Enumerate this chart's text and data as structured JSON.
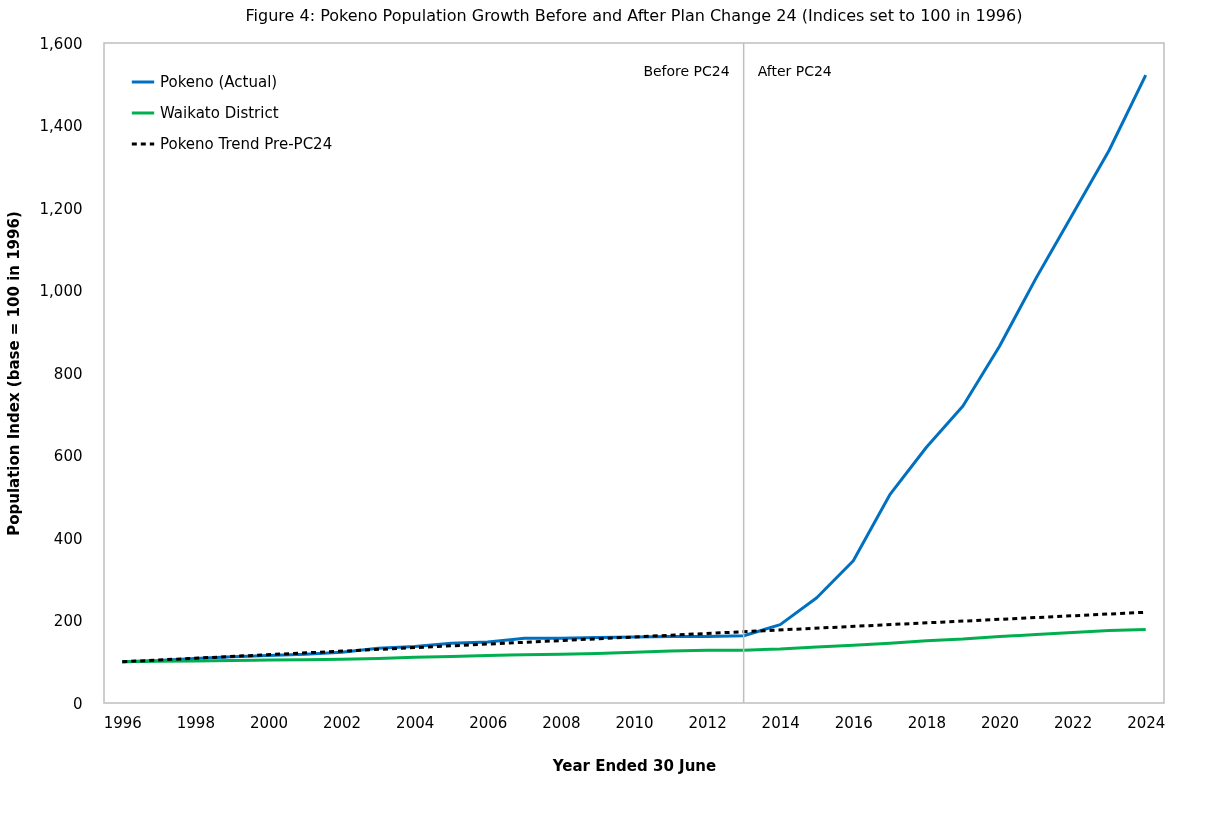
{
  "chart_data": {
    "type": "line",
    "title": "Figure 4: Pokeno Population Growth Before and After Plan Change 24 (Indices set to 100 in 1996)",
    "xlabel": "Year Ended 30 June",
    "ylabel": "Population Index (base = 100 in 1996)",
    "x": [
      1996,
      1997,
      1998,
      1999,
      2000,
      2001,
      2002,
      2003,
      2004,
      2005,
      2006,
      2007,
      2008,
      2009,
      2010,
      2011,
      2012,
      2013,
      2014,
      2015,
      2016,
      2017,
      2018,
      2019,
      2020,
      2021,
      2022,
      2023,
      2024
    ],
    "series": [
      {
        "name": "Pokeno (Actual)",
        "color": "#0070c0",
        "values": [
          100,
          103,
          108,
          112,
          115,
          118,
          123,
          133,
          137,
          145,
          148,
          157,
          157,
          159,
          160,
          161,
          161,
          163,
          190,
          255,
          345,
          505,
          620,
          720,
          865,
          1030,
          1185,
          1340,
          1522
        ]
      },
      {
        "name": "Waikato District",
        "color": "#00b050",
        "values": [
          100,
          101,
          102,
          103,
          104,
          105,
          106,
          108,
          111,
          113,
          115,
          117,
          118,
          120,
          123,
          126,
          128,
          128,
          131,
          136,
          140,
          145,
          151,
          155,
          161,
          166,
          171,
          176,
          178
        ]
      },
      {
        "name": "Pokeno Trend Pre-PC24",
        "color": "#000000",
        "line_style": "dashed",
        "x": [
          1996,
          2024
        ],
        "values": [
          100,
          220
        ]
      }
    ],
    "xlim": [
      1995.5,
      2024.5
    ],
    "xticks": [
      1996,
      1998,
      2000,
      2002,
      2004,
      2006,
      2008,
      2010,
      2012,
      2014,
      2016,
      2018,
      2020,
      2022,
      2024
    ],
    "ylim": [
      0,
      1600
    ],
    "yticks": [
      0,
      200,
      400,
      600,
      800,
      {
        "value": 1000,
        "label": "1,000"
      },
      {
        "value": 1200,
        "label": "1,200"
      },
      {
        "value": 1400,
        "label": "1,400"
      },
      {
        "value": 1600,
        "label": "1,600"
      }
    ],
    "ref_lines": [
      {
        "axis": "x",
        "value": 2013,
        "color": "#bfbfbf"
      }
    ],
    "annotations": [
      {
        "text": "Before PC24",
        "x": 2013,
        "y": 1530
      },
      {
        "text": "After PC24",
        "x": 2013,
        "y": 1530
      }
    ],
    "legend": "top left",
    "grid": false
  }
}
